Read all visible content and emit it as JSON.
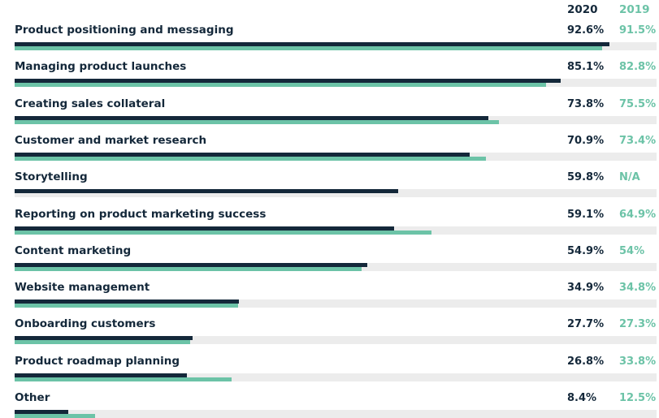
{
  "chart_data": {
    "type": "bar",
    "orientation": "horizontal",
    "series_headers": [
      "2020",
      "2019"
    ],
    "colors": {
      "2020": "#14283a",
      "2019": "#6cc3a7",
      "track": "#ececec"
    },
    "xlim": [
      0,
      100
    ],
    "categories": [
      "Product positioning and messaging",
      "Managing product launches",
      "Creating sales collateral",
      "Customer and market research",
      "Storytelling",
      "Reporting on product marketing success",
      "Content marketing",
      "Website management",
      "Onboarding customers",
      "Product roadmap planning",
      "Other"
    ],
    "series": [
      {
        "name": "2020",
        "values": [
          92.6,
          85.1,
          73.8,
          70.9,
          59.8,
          59.1,
          54.9,
          34.9,
          27.7,
          26.8,
          8.4
        ],
        "labels": [
          "92.6%",
          "85.1%",
          "73.8%",
          "70.9%",
          "59.8%",
          "59.1%",
          "54.9%",
          "34.9%",
          "27.7%",
          "26.8%",
          "8.4%"
        ]
      },
      {
        "name": "2019",
        "values": [
          91.5,
          82.8,
          75.5,
          73.4,
          null,
          64.9,
          54,
          34.8,
          27.3,
          33.8,
          12.5
        ],
        "labels": [
          "91.5%",
          "82.8%",
          "75.5%",
          "73.4%",
          "N/A",
          "64.9%",
          "54%",
          "34.8%",
          "27.3%",
          "33.8%",
          "12.5%"
        ]
      }
    ]
  }
}
